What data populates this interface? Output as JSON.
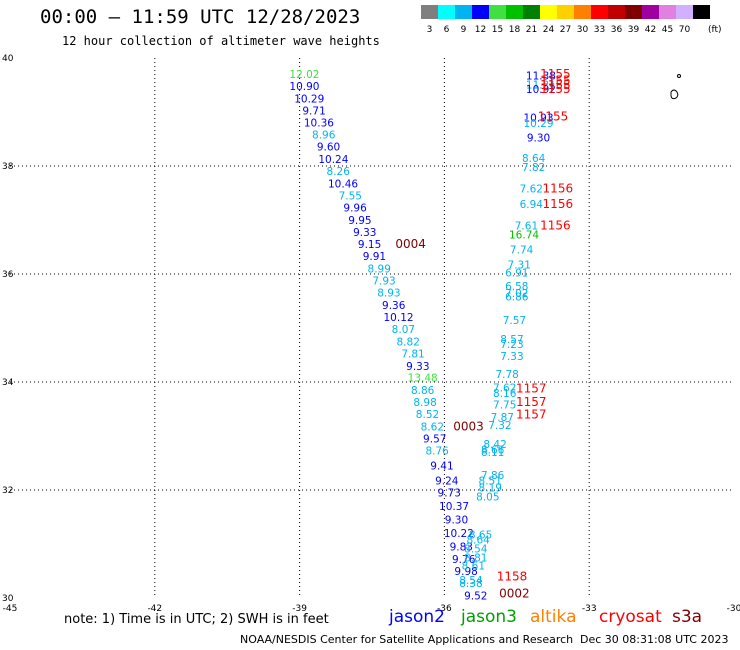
{
  "header": {
    "title": "00:00 – 11:59 UTC 12/28/2023",
    "subtitle": "12 hour collection of altimeter wave heights"
  },
  "scale": {
    "unit": "(ft)",
    "bins": [
      {
        "label": "3",
        "color": "#7f7f7f"
      },
      {
        "label": "6",
        "color": "#00ffff"
      },
      {
        "label": "9",
        "color": "#00b4f0"
      },
      {
        "label": "12",
        "color": "#0000ff"
      },
      {
        "label": "15",
        "color": "#40e040"
      },
      {
        "label": "18",
        "color": "#00c000"
      },
      {
        "label": "21",
        "color": "#008000"
      },
      {
        "label": "24",
        "color": "#ffff00"
      },
      {
        "label": "27",
        "color": "#ffd000"
      },
      {
        "label": "30",
        "color": "#ff8000"
      },
      {
        "label": "33",
        "color": "#ff0000"
      },
      {
        "label": "36",
        "color": "#c00000"
      },
      {
        "label": "39",
        "color": "#800000"
      },
      {
        "label": "42",
        "color": "#a000a0"
      },
      {
        "label": "45",
        "color": "#e080e0"
      },
      {
        "label": "70",
        "color": "#d0b0ff"
      },
      {
        "label": "",
        "color": "#000000"
      }
    ]
  },
  "footer": {
    "note": "note: 1) Time is in UTC; 2) SWH is in feet",
    "satellites": [
      {
        "name": "jason2",
        "color": "#0000ff"
      },
      {
        "name": "jason3",
        "color": "#00a000"
      },
      {
        "name": "altika",
        "color": "#ff8000"
      },
      {
        "name": "cryosat",
        "color": "#ff0000"
      },
      {
        "name": "s3a",
        "color": "#800000"
      }
    ],
    "credit": "NOAA/NESDIS Center for Satellite Applications and Research",
    "timestamp": "Dec 30 08:31:08 UTC 2023"
  },
  "chart_data": {
    "type": "scatter",
    "title": "00:00 – 11:59 UTC 12/28/2023",
    "xlim": [
      -45,
      -30
    ],
    "ylim": [
      30,
      40
    ],
    "x_ticks": [
      "-45",
      "-42",
      "-39",
      "-36",
      "-33",
      "-30"
    ],
    "y_ticks": [
      "30",
      "32",
      "34",
      "36",
      "38",
      "40"
    ],
    "grid": true,
    "tracks": [
      {
        "name": "track-west",
        "points": [
          {
            "x": -38.9,
            "y": 39.7,
            "v": "12.02",
            "c": "#40e040"
          },
          {
            "x": -38.9,
            "y": 39.48,
            "v": "10.90",
            "c": "#0000ff"
          },
          {
            "x": -38.8,
            "y": 39.25,
            "v": "10.29",
            "c": "#0000ff"
          },
          {
            "x": -38.7,
            "y": 39.03,
            "v": "9.71",
            "c": "#0000ff"
          },
          {
            "x": -38.6,
            "y": 38.81,
            "v": "10.36",
            "c": "#0000ff"
          },
          {
            "x": -38.5,
            "y": 38.58,
            "v": "8.96",
            "c": "#00b4f0"
          },
          {
            "x": -38.4,
            "y": 38.36,
            "v": "9.60",
            "c": "#0000ff"
          },
          {
            "x": -38.3,
            "y": 38.13,
            "v": "10.24",
            "c": "#0000ff"
          },
          {
            "x": -38.2,
            "y": 37.91,
            "v": "8.26",
            "c": "#00b4f0"
          },
          {
            "x": -38.1,
            "y": 37.68,
            "v": "10.46",
            "c": "#0000ff"
          },
          {
            "x": -37.95,
            "y": 37.45,
            "v": "7.55",
            "c": "#00b4f0"
          },
          {
            "x": -37.85,
            "y": 37.23,
            "v": "9.96",
            "c": "#0000ff"
          },
          {
            "x": -37.75,
            "y": 37.0,
            "v": "9.95",
            "c": "#0000ff"
          },
          {
            "x": -37.65,
            "y": 36.78,
            "v": "9.33",
            "c": "#0000ff"
          },
          {
            "x": -37.55,
            "y": 36.56,
            "v": "9.15",
            "c": "#0000ff"
          },
          {
            "x": -37.45,
            "y": 36.33,
            "v": "9.91",
            "c": "#0000ff"
          },
          {
            "x": -37.35,
            "y": 36.1,
            "v": "8.99",
            "c": "#00b4f0"
          },
          {
            "x": -37.25,
            "y": 35.88,
            "v": "7.93",
            "c": "#00b4f0"
          },
          {
            "x": -37.15,
            "y": 35.66,
            "v": "8.93",
            "c": "#00b4f0"
          },
          {
            "x": -37.05,
            "y": 35.43,
            "v": "9.36",
            "c": "#0000ff"
          },
          {
            "x": -36.95,
            "y": 35.2,
            "v": "10.12",
            "c": "#0000ff"
          },
          {
            "x": -36.85,
            "y": 34.98,
            "v": "8.07",
            "c": "#00b4f0"
          },
          {
            "x": -36.75,
            "y": 34.75,
            "v": "8.82",
            "c": "#00b4f0"
          },
          {
            "x": -36.65,
            "y": 34.53,
            "v": "7.81",
            "c": "#00b4f0"
          },
          {
            "x": -36.55,
            "y": 34.3,
            "v": "9.33",
            "c": "#0000ff"
          },
          {
            "x": -36.45,
            "y": 34.08,
            "v": "13.48",
            "c": "#40e040"
          },
          {
            "x": -36.45,
            "y": 33.85,
            "v": "8.86",
            "c": "#00b4f0"
          },
          {
            "x": -36.4,
            "y": 33.63,
            "v": "8.98",
            "c": "#00b4f0"
          },
          {
            "x": -36.35,
            "y": 33.41,
            "v": "8.52",
            "c": "#00b4f0"
          },
          {
            "x": -36.25,
            "y": 33.18,
            "v": "8.62",
            "c": "#00b4f0"
          },
          {
            "x": -36.2,
            "y": 32.95,
            "v": "9.57",
            "c": "#0000ff"
          },
          {
            "x": -36.15,
            "y": 32.73,
            "v": "8.76",
            "c": "#00b4f0"
          },
          {
            "x": -36.05,
            "y": 32.45,
            "v": "9.41",
            "c": "#0000ff"
          },
          {
            "x": -35.95,
            "y": 32.18,
            "v": "9.24",
            "c": "#0000ff"
          },
          {
            "x": -35.9,
            "y": 31.95,
            "v": "9.73",
            "c": "#0000ff"
          },
          {
            "x": -35.8,
            "y": 31.7,
            "v": "10.37",
            "c": "#0000ff"
          },
          {
            "x": -35.75,
            "y": 31.45,
            "v": "9.30",
            "c": "#0000ff"
          },
          {
            "x": -35.7,
            "y": 31.2,
            "v": "10.22",
            "c": "#0000ff"
          },
          {
            "x": -35.65,
            "y": 30.95,
            "v": "9.83",
            "c": "#0000ff"
          },
          {
            "x": -35.6,
            "y": 30.72,
            "v": "9.76",
            "c": "#0000ff"
          },
          {
            "x": -35.55,
            "y": 30.5,
            "v": "9.98",
            "c": "#0000ff"
          },
          {
            "x": -35.45,
            "y": 30.28,
            "v": "8.38",
            "c": "#00b4f0"
          },
          {
            "x": -35.35,
            "y": 30.05,
            "v": "9.52",
            "c": "#0000ff"
          }
        ]
      },
      {
        "name": "track-east",
        "points": [
          {
            "x": -34.0,
            "y": 39.68,
            "v": "11.38",
            "c": "#0000ff"
          },
          {
            "x": -34.0,
            "y": 39.51,
            "v": "11.21",
            "c": "#00b4f0"
          },
          {
            "x": -34.0,
            "y": 39.43,
            "v": "10.92",
            "c": "#0000ff"
          },
          {
            "x": -34.05,
            "y": 38.9,
            "v": "10.93",
            "c": "#0000ff"
          },
          {
            "x": -34.05,
            "y": 38.8,
            "v": "10.29",
            "c": "#00b4f0"
          },
          {
            "x": -34.05,
            "y": 38.53,
            "v": "9.30",
            "c": "#0000ff"
          },
          {
            "x": -34.15,
            "y": 38.15,
            "v": "8.64",
            "c": "#00b4f0"
          },
          {
            "x": -34.15,
            "y": 37.98,
            "v": "7.82",
            "c": "#00b4f0"
          },
          {
            "x": -34.2,
            "y": 37.58,
            "v": "7.62",
            "c": "#00b4f0"
          },
          {
            "x": -34.2,
            "y": 37.3,
            "v": "6.94",
            "c": "#00b4f0"
          },
          {
            "x": -34.3,
            "y": 36.9,
            "v": "7.61",
            "c": "#00b4f0"
          },
          {
            "x": -34.35,
            "y": 36.73,
            "v": "16.74",
            "c": "#00c000"
          },
          {
            "x": -34.4,
            "y": 36.45,
            "v": "7.74",
            "c": "#00b4f0"
          },
          {
            "x": -34.45,
            "y": 36.18,
            "v": "7.31",
            "c": "#00b4f0"
          },
          {
            "x": -34.5,
            "y": 36.03,
            "v": "6.91",
            "c": "#00b4f0"
          },
          {
            "x": -34.5,
            "y": 35.78,
            "v": "6.58",
            "c": "#00b4f0"
          },
          {
            "x": -34.5,
            "y": 35.65,
            "v": "7.02",
            "c": "#00b4f0"
          },
          {
            "x": -34.5,
            "y": 35.58,
            "v": "6.86",
            "c": "#00b4f0"
          },
          {
            "x": -34.55,
            "y": 35.15,
            "v": "7.57",
            "c": "#00b4f0"
          },
          {
            "x": -34.6,
            "y": 34.8,
            "v": "8.57",
            "c": "#00b4f0"
          },
          {
            "x": -34.6,
            "y": 34.7,
            "v": "7.23",
            "c": "#00b4f0"
          },
          {
            "x": -34.6,
            "y": 34.48,
            "v": "7.33",
            "c": "#00b4f0"
          },
          {
            "x": -34.7,
            "y": 34.15,
            "v": "7.78",
            "c": "#00b4f0"
          },
          {
            "x": -34.75,
            "y": 33.9,
            "v": "7.62",
            "c": "#00b4f0"
          },
          {
            "x": -34.75,
            "y": 33.8,
            "v": "8.16",
            "c": "#00b4f0"
          },
          {
            "x": -34.75,
            "y": 33.58,
            "v": "7.75",
            "c": "#00b4f0"
          },
          {
            "x": -34.8,
            "y": 33.35,
            "v": "7.87",
            "c": "#00b4f0"
          },
          {
            "x": -34.85,
            "y": 33.2,
            "v": "7.32",
            "c": "#00b4f0"
          },
          {
            "x": -34.95,
            "y": 32.85,
            "v": "8.42",
            "c": "#00b4f0"
          },
          {
            "x": -35.0,
            "y": 32.75,
            "v": "8.66",
            "c": "#00b4f0"
          },
          {
            "x": -35.0,
            "y": 32.7,
            "v": "8.11",
            "c": "#00b4f0"
          },
          {
            "x": -35.0,
            "y": 32.28,
            "v": "7.86",
            "c": "#00b4f0"
          },
          {
            "x": -35.05,
            "y": 32.18,
            "v": "8.51",
            "c": "#00b4f0"
          },
          {
            "x": -35.05,
            "y": 32.05,
            "v": "8.19",
            "c": "#00b4f0"
          },
          {
            "x": -35.1,
            "y": 31.88,
            "v": "8.05",
            "c": "#00b4f0"
          },
          {
            "x": -35.25,
            "y": 31.18,
            "v": "8.65",
            "c": "#00b4f0"
          },
          {
            "x": -35.3,
            "y": 31.08,
            "v": "8.64",
            "c": "#00b4f0"
          },
          {
            "x": -35.35,
            "y": 30.92,
            "v": "8.54",
            "c": "#00b4f0"
          },
          {
            "x": -35.35,
            "y": 30.75,
            "v": "8.81",
            "c": "#00b4f0"
          },
          {
            "x": -35.4,
            "y": 30.6,
            "v": "8.61",
            "c": "#00b4f0"
          },
          {
            "x": -35.45,
            "y": 30.33,
            "v": "8.54",
            "c": "#00b4f0"
          }
        ]
      }
    ],
    "time_labels": [
      {
        "x": -33.7,
        "y": 39.7,
        "v": "1155",
        "c": "#ff0000"
      },
      {
        "x": -33.7,
        "y": 39.58,
        "v": "1155",
        "c": "#ff0000"
      },
      {
        "x": -33.7,
        "y": 39.5,
        "v": "1155",
        "c": "#ff0000"
      },
      {
        "x": -33.7,
        "y": 39.43,
        "v": "1155",
        "c": "#ff0000"
      },
      {
        "x": -33.75,
        "y": 38.92,
        "v": "1155",
        "c": "#ff0000"
      },
      {
        "x": -33.65,
        "y": 37.58,
        "v": "1156",
        "c": "#ff0000"
      },
      {
        "x": -33.65,
        "y": 37.3,
        "v": "1156",
        "c": "#ff0000"
      },
      {
        "x": -33.7,
        "y": 36.9,
        "v": "1156",
        "c": "#ff0000"
      },
      {
        "x": -36.7,
        "y": 36.56,
        "v": "0004",
        "c": "#800000"
      },
      {
        "x": -34.2,
        "y": 33.88,
        "v": "1157",
        "c": "#ff0000"
      },
      {
        "x": -34.2,
        "y": 33.63,
        "v": "1157",
        "c": "#ff0000"
      },
      {
        "x": -34.2,
        "y": 33.4,
        "v": "1157",
        "c": "#ff0000"
      },
      {
        "x": -35.5,
        "y": 33.18,
        "v": "0003",
        "c": "#800000"
      },
      {
        "x": -34.6,
        "y": 30.4,
        "v": "1158",
        "c": "#ff0000"
      },
      {
        "x": -34.55,
        "y": 30.08,
        "v": "0002",
        "c": "#800000"
      }
    ]
  }
}
